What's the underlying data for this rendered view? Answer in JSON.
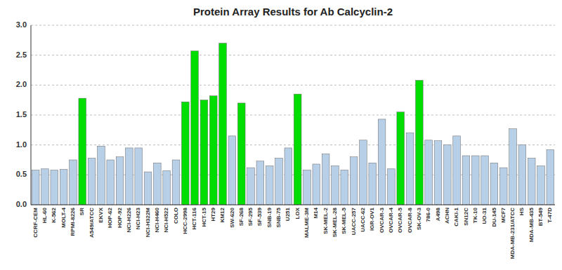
{
  "chart_data": {
    "type": "bar",
    "title": "Protein Array Results for Ab Calcyclin-2",
    "categories": [
      "CCRF-CEM",
      "HL-60",
      "K-562",
      "MOLT-4",
      "RPMI-8226",
      "SR",
      "A549/ATCC",
      "EKVX",
      "HOP-62",
      "HOP-92",
      "NCI-H226",
      "NCI-H23",
      "NCI-H322M",
      "NCI-H460",
      "NCI-H522",
      "COLO",
      "HCC-2998",
      "HCT-116",
      "HCT-15",
      "HT29",
      "KM12",
      "SW-620",
      "SF-268",
      "SF-295",
      "SF-539",
      "SNB-19",
      "SNB-75",
      "U251",
      "LOX",
      "MALME-3M",
      "M14",
      "SK-MEL-2",
      "SK-MEL-28",
      "SK-MEL-5",
      "UACC-257",
      "UACC-62",
      "IGR-OV1",
      "OVCAR-3",
      "OVCAR-4",
      "OVCAR-5",
      "OVCAR-8",
      "SK-OV-3",
      "786-0",
      "A498",
      "ACHN",
      "CAKI-1",
      "SN12C",
      "TK-10",
      "UO-31",
      "DU-145",
      "MCF7",
      "MDA-MB-231/ATCC",
      "HS",
      "MDA-MB-435",
      "BT-549",
      "T-47D"
    ],
    "values": [
      0.58,
      0.6,
      0.58,
      0.59,
      0.75,
      1.78,
      0.78,
      0.98,
      0.75,
      0.8,
      0.95,
      0.95,
      0.55,
      0.7,
      0.57,
      0.75,
      1.72,
      2.57,
      1.75,
      1.82,
      2.7,
      1.15,
      1.7,
      0.62,
      0.73,
      0.65,
      0.78,
      0.95,
      1.85,
      0.58,
      0.68,
      0.85,
      0.65,
      0.58,
      0.8,
      1.08,
      0.7,
      1.43,
      0.6,
      1.55,
      1.2,
      2.08,
      1.08,
      1.07,
      1.0,
      1.15,
      0.82,
      0.82,
      0.82,
      0.7,
      0.62,
      1.27,
      1.0,
      0.78,
      0.65,
      0.92
    ],
    "colors": [
      "#b8cfe8",
      "#b8cfe8",
      "#b8cfe8",
      "#b8cfe8",
      "#b8cfe8",
      "#00dd00",
      "#b8cfe8",
      "#b8cfe8",
      "#b8cfe8",
      "#b8cfe8",
      "#b8cfe8",
      "#b8cfe8",
      "#b8cfe8",
      "#b8cfe8",
      "#b8cfe8",
      "#b8cfe8",
      "#00dd00",
      "#00dd00",
      "#00dd00",
      "#00dd00",
      "#00dd00",
      "#b8cfe8",
      "#00dd00",
      "#b8cfe8",
      "#b8cfe8",
      "#b8cfe8",
      "#b8cfe8",
      "#b8cfe8",
      "#00dd00",
      "#b8cfe8",
      "#b8cfe8",
      "#b8cfe8",
      "#b8cfe8",
      "#b8cfe8",
      "#b8cfe8",
      "#b8cfe8",
      "#b8cfe8",
      "#b8cfe8",
      "#b8cfe8",
      "#00dd00",
      "#b8cfe8",
      "#00dd00",
      "#b8cfe8",
      "#b8cfe8",
      "#b8cfe8",
      "#b8cfe8",
      "#b8cfe8",
      "#b8cfe8",
      "#b8cfe8",
      "#b8cfe8",
      "#b8cfe8",
      "#b8cfe8",
      "#b8cfe8",
      "#b8cfe8",
      "#b8cfe8",
      "#b8cfe8"
    ],
    "ylim": [
      0.0,
      3.0
    ],
    "yticks": [
      {
        "value": 0,
        "label": "0.0"
      },
      0.5,
      {
        "value": 1,
        "label": "1.0"
      },
      1.5,
      {
        "value": 2,
        "label": "2.0"
      },
      2.5,
      {
        "value": 3,
        "label": "3.0"
      }
    ],
    "grid": true
  }
}
